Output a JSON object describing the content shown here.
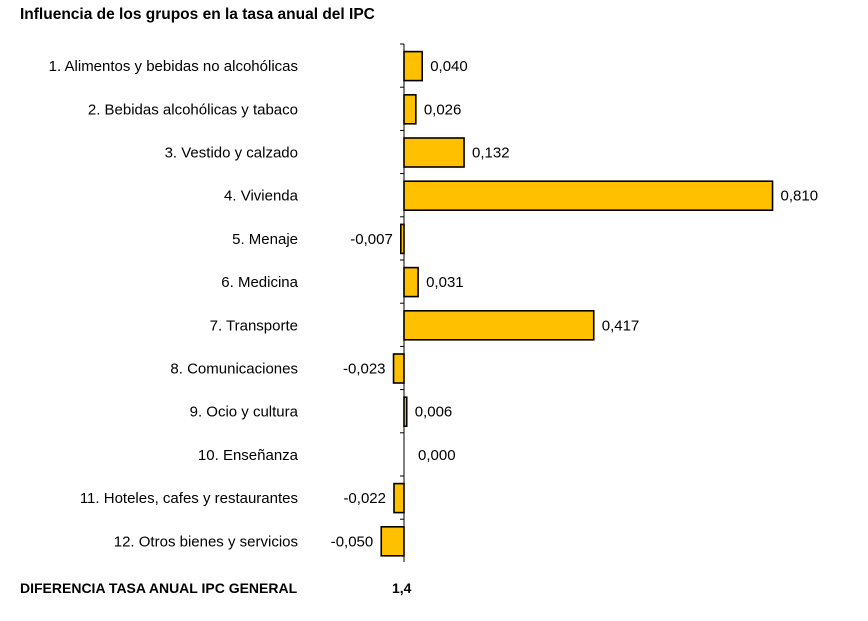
{
  "chart_data": {
    "type": "bar",
    "orientation": "horizontal",
    "title": "Influencia de los grupos en la tasa anual del IPC",
    "categories": [
      "1. Alimentos y bebidas no alcohólicas",
      "2. Bebidas alcohólicas y tabaco",
      "3. Vestido y calzado",
      "4. Vivienda",
      "5. Menaje",
      "6. Medicina",
      "7. Transporte",
      "8. Comunicaciones",
      "9. Ocio y cultura",
      "10. Enseñanza",
      "11. Hoteles, cafes y restaurantes",
      "12. Otros bienes y servicios"
    ],
    "values": [
      0.04,
      0.026,
      0.132,
      0.81,
      -0.007,
      0.031,
      0.417,
      -0.023,
      0.006,
      0.0,
      -0.022,
      -0.05
    ],
    "value_labels": [
      "0,040",
      "0,026",
      "0,132",
      "0,810",
      "-0,007",
      "0,031",
      "0,417",
      "-0,023",
      "0,006",
      "0,000",
      "-0,022",
      "-0,050"
    ],
    "bar_color": "#FFC000",
    "bar_stroke": "#000000",
    "grid": false,
    "legend": "none"
  },
  "footer": {
    "label": "DIFERENCIA TASA ANUAL IPC GENERAL",
    "value": "1,4"
  }
}
